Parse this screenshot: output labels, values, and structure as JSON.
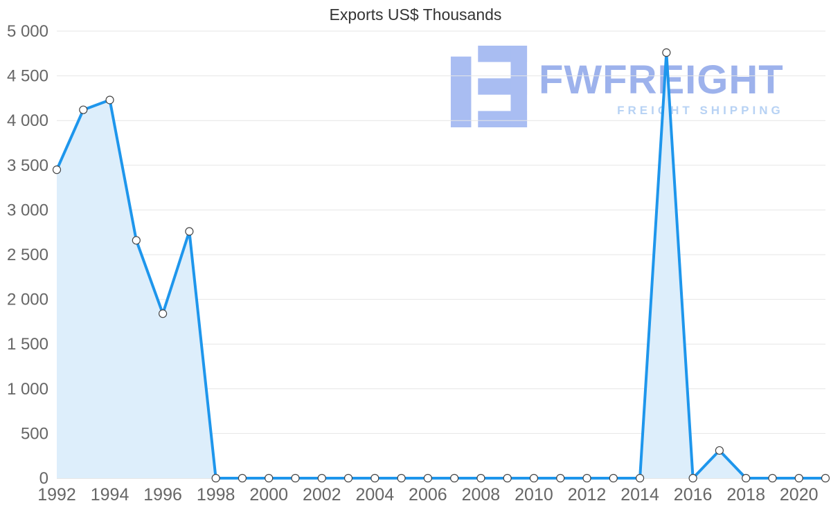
{
  "chart_data": {
    "type": "area",
    "title": "Exports US$ Thousands",
    "x": [
      1992,
      1993,
      1994,
      1995,
      1996,
      1997,
      1998,
      1999,
      2000,
      2001,
      2002,
      2003,
      2004,
      2005,
      2006,
      2007,
      2008,
      2009,
      2010,
      2011,
      2012,
      2013,
      2014,
      2015,
      2016,
      2017,
      2018,
      2019,
      2020,
      2021
    ],
    "values": [
      3450,
      4120,
      4230,
      2660,
      1840,
      2760,
      0,
      0,
      0,
      0,
      0,
      0,
      0,
      0,
      0,
      0,
      0,
      0,
      0,
      0,
      0,
      0,
      0,
      4760,
      0,
      310,
      0,
      0,
      0,
      0
    ],
    "xlabel": "",
    "ylabel": "",
    "ylim": [
      0,
      5000
    ],
    "ytick_step": 500,
    "xlabel_every_years": 2,
    "grid": true,
    "legend_position": "none",
    "line_color": "#1e96ec",
    "fill_color": "#ddeefb",
    "marker_fill": "#ffffff",
    "marker_stroke": "#444444",
    "grid_color": "#e6e6e6",
    "axis_color": "#cccccc",
    "label_color": "#666666",
    "title_color": "#333333",
    "thousands_separator": " "
  },
  "watermark": {
    "brand": "FWFREIGHT",
    "tagline": "FREIGHT SHIPPING",
    "logo_color": "#a9bdf2"
  }
}
